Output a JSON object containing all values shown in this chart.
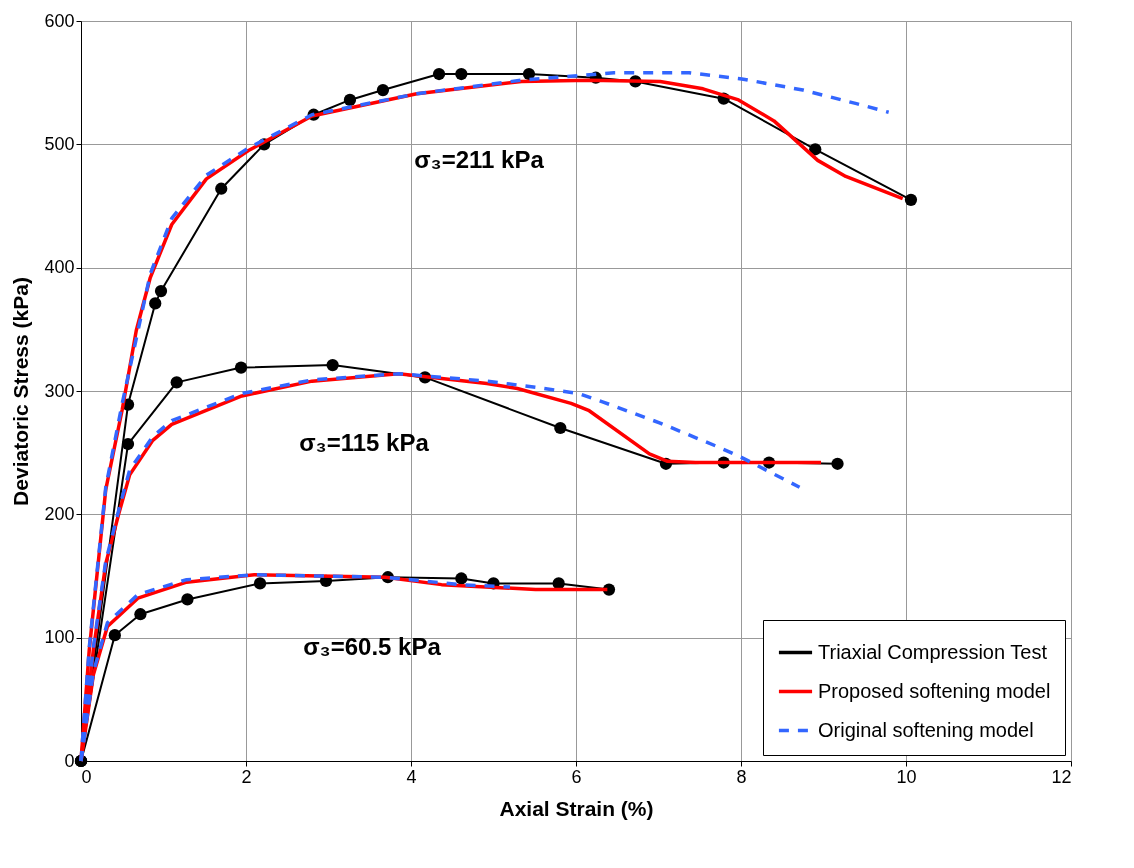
{
  "chart_data": {
    "type": "line",
    "xlabel": "Axial Strain (%)",
    "ylabel": "Deviatoric Stress (kPa)",
    "xlim": [
      0,
      12
    ],
    "xticks": [
      0,
      2,
      4,
      6,
      8,
      10,
      12
    ],
    "ylim": [
      0,
      600
    ],
    "yticks": [
      0,
      100,
      200,
      300,
      400,
      500,
      600
    ],
    "grid": true,
    "legend": "bottom right",
    "annotations": [
      "σ₃=211 kPa",
      "σ₃=115 kPa",
      "σ₃=60.5 kPa"
    ],
    "series": [
      {
        "name": "Triaxial Compression Test",
        "color": "#000000",
        "line_style": "solid",
        "marker": "circle",
        "x": [
          0,
          0.57,
          0.9,
          0.97,
          1.7,
          2.22,
          2.82,
          3.26,
          3.66,
          4.34,
          4.61,
          5.43,
          6.24,
          6.72,
          7.79,
          8.9,
          10.06
        ],
        "values": [
          0,
          289,
          371,
          381,
          464,
          500,
          524,
          536,
          544,
          557,
          557,
          557,
          554,
          551,
          537,
          496,
          455
        ]
      },
      {
        "color": "#000000",
        "line_style": "solid",
        "marker": "circle",
        "x": [
          0,
          0.57,
          1.16,
          1.94,
          3.05,
          4.17,
          5.81,
          7.09,
          7.79,
          8.34,
          9.17
        ],
        "values": [
          0,
          257,
          307,
          319,
          321,
          311,
          270,
          241,
          242,
          242,
          241
        ]
      },
      {
        "color": "#000000",
        "line_style": "solid",
        "marker": "circle",
        "x": [
          0,
          0.41,
          0.72,
          1.29,
          2.17,
          2.97,
          3.72,
          4.61,
          5.0,
          5.79,
          6.4
        ],
        "values": [
          0,
          102,
          119,
          131,
          144,
          146,
          149,
          148,
          144,
          144,
          139
        ]
      },
      {
        "name": "Proposed softening model",
        "color": "#ff0000",
        "line_style": "solid",
        "marker": "none",
        "x": [
          0,
          0.1,
          0.3,
          0.5,
          0.67,
          0.84,
          1.1,
          1.52,
          2.03,
          2.8,
          4.07,
          5.34,
          6.16,
          7.02,
          7.54,
          7.97,
          8.4,
          8.93,
          9.27,
          9.96
        ],
        "values": [
          0,
          90,
          220,
          285,
          349,
          392,
          435,
          472,
          495,
          523,
          541,
          551,
          552,
          551,
          545,
          536,
          519,
          487,
          474,
          456
        ]
      },
      {
        "color": "#ff0000",
        "line_style": "solid",
        "marker": "none",
        "x": [
          0,
          0.15,
          0.3,
          0.46,
          0.59,
          0.87,
          1.1,
          1.95,
          2.8,
          3.85,
          4.92,
          5.29,
          5.94,
          6.16,
          6.89,
          7.11,
          7.45,
          8.97
        ],
        "values": [
          0,
          90,
          160,
          201,
          232,
          260,
          273,
          296,
          308,
          314,
          306,
          302,
          290,
          284,
          249,
          243,
          242,
          242
        ]
      },
      {
        "color": "#ff0000",
        "line_style": "solid",
        "marker": "none",
        "x": [
          0,
          0.15,
          0.32,
          0.69,
          1.28,
          2.1,
          3.69,
          4.37,
          5.51,
          6.38
        ],
        "values": [
          0,
          70,
          109,
          132,
          145,
          151,
          149,
          143,
          139,
          139
        ]
      },
      {
        "name": "Original softening model",
        "color": "#3366ff",
        "line_style": "dashed",
        "marker": "none",
        "x": [
          0,
          0.1,
          0.3,
          0.5,
          0.84,
          1.1,
          1.52,
          2.03,
          2.8,
          4.07,
          5.34,
          6.46,
          7.37,
          8.01,
          8.75,
          9.4,
          9.79
        ],
        "values": [
          0,
          92,
          222,
          290,
          395,
          440,
          475,
          497,
          524,
          541,
          552,
          558,
          558,
          553,
          544,
          533,
          526
        ]
      },
      {
        "color": "#3366ff",
        "line_style": "dashed",
        "marker": "none",
        "x": [
          0,
          0.15,
          0.3,
          0.46,
          0.59,
          0.87,
          1.1,
          1.95,
          2.8,
          3.85,
          4.92,
          5.51,
          6.03,
          6.33,
          7.02,
          7.71,
          8.01,
          8.71
        ],
        "values": [
          0,
          92,
          162,
          204,
          236,
          263,
          276,
          298,
          309,
          314,
          308,
          303,
          298,
          291,
          274,
          255,
          246,
          222
        ]
      },
      {
        "color": "#3366ff",
        "line_style": "dashed",
        "marker": "none",
        "x": [
          0,
          0.15,
          0.32,
          0.69,
          1.28,
          2.1,
          3.69,
          4.6,
          5.2
        ],
        "values": [
          0,
          72,
          112,
          135,
          147,
          151,
          149,
          143,
          141
        ]
      }
    ]
  }
}
